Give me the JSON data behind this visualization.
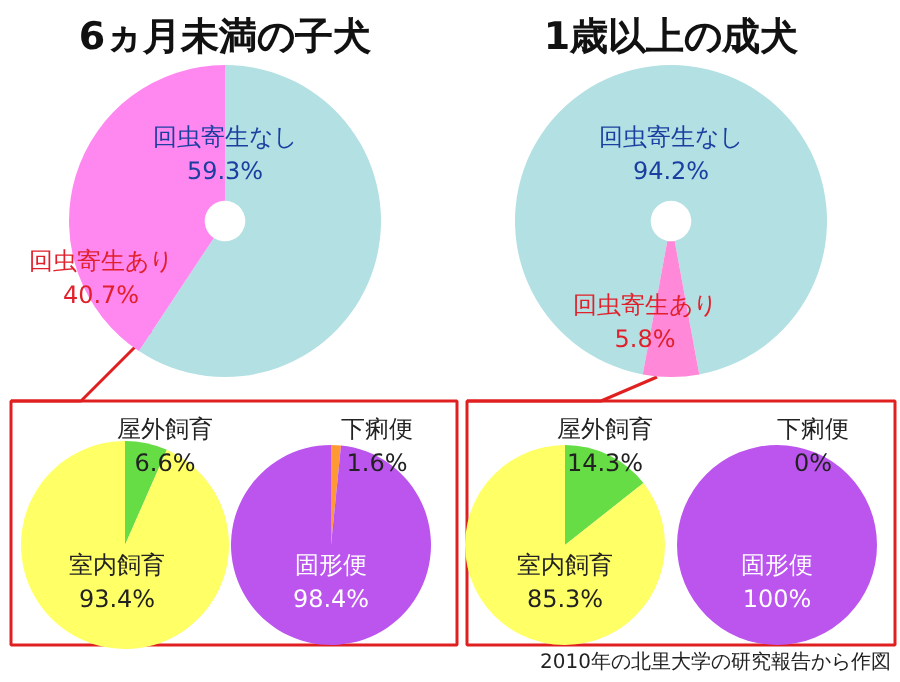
{
  "chart_data": [
    {
      "type": "donut",
      "title": "6ヵ月未満の子犬",
      "categories": [
        "回虫寄生なし",
        "回虫寄生あり"
      ],
      "values": [
        59.3,
        40.7
      ],
      "value_labels": [
        "59.3%",
        "40.7%"
      ],
      "colors": [
        "#b3e0e3",
        "#ff88f0"
      ]
    },
    {
      "type": "donut",
      "title": "1歳以上の成犬",
      "categories": [
        "回虫寄生なし",
        "回虫寄生あり"
      ],
      "values": [
        94.2,
        5.8
      ],
      "value_labels": [
        "94.2%",
        "5.8%"
      ],
      "colors": [
        "#b3e0e3",
        "#ff88d8"
      ]
    },
    {
      "type": "pie",
      "categories": [
        "屋外飼育",
        "室内飼育"
      ],
      "values": [
        6.6,
        93.4
      ],
      "value_labels": [
        "6.6%",
        "93.4%"
      ],
      "colors": [
        "#66dd44",
        "#ffff66"
      ]
    },
    {
      "type": "pie",
      "categories": [
        "下痢便",
        "固形便"
      ],
      "values": [
        1.6,
        98.4
      ],
      "value_labels": [
        "1.6%",
        "98.4%"
      ],
      "colors": [
        "#ff9933",
        "#bb55ee"
      ]
    },
    {
      "type": "pie",
      "categories": [
        "屋外飼育",
        "室内飼育"
      ],
      "values": [
        14.3,
        85.3
      ],
      "value_labels": [
        "14.3%",
        "85.3%"
      ],
      "colors": [
        "#66dd44",
        "#ffff66"
      ]
    },
    {
      "type": "pie",
      "categories": [
        "下痢便",
        "固形便"
      ],
      "values": [
        0,
        100
      ],
      "value_labels": [
        "0%",
        "100%"
      ],
      "colors": [
        "#ff9933",
        "#bb55ee"
      ],
      "annotations": [
        "2010年の北里大学の研究報告から作図"
      ]
    }
  ]
}
